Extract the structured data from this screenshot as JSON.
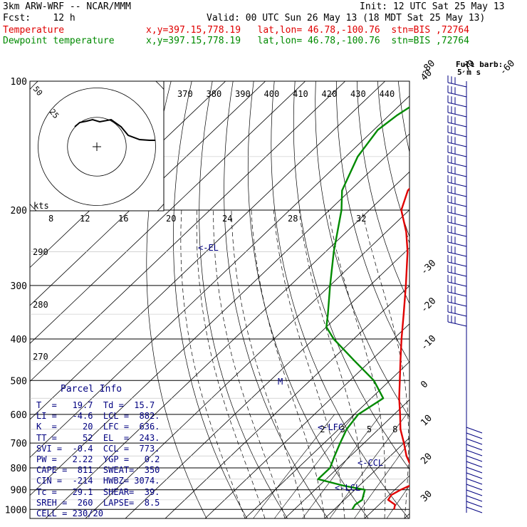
{
  "header": {
    "model": "3km ARW-WRF -- NCAR/MMM",
    "init": "Init: 12 UTC Sat 25 May 13",
    "fcst": "Fcst:    12 h",
    "valid": "Valid: 00 UTC Sun 26 May 13 (18 MDT Sat 25 May 13)",
    "temp_label": "Temperature",
    "temp_loc": "x,y=397.15,778.19   lat,lon= 46.78,-100.76  stn=BIS ,72764",
    "dew_label": "Dewpoint temperature",
    "dew_loc": "x,y=397.15,778.19   lat,lon= 46.78,-100.76  stn=BIS ,72764"
  },
  "colors": {
    "temperature": "#e00000",
    "dewpoint": "#008a00",
    "text": "#000080"
  },
  "parcel_info": {
    "title": "Parcel Info",
    "rows": [
      "T  =   19.7  Td =  15.7",
      "LI =   -4.6  LCL =  882.",
      "K  =     20  LFC =  636.",
      "TT =     52  EL  =  243.",
      "SVI =  -0.4  CCL =  773.",
      "PW =   2.22  YGP =   0.2",
      "CAPE =  811  SWEAT=  350",
      "CIN =  -214  HWBZ= 3074.",
      "Tc =   29.1  SHEAR=  39.",
      "SREH =  260  LAPSE=  8.5",
      "CELL = 230/20"
    ]
  },
  "labels": {
    "lcl": "<-LCL",
    "lfc": "<-LFC",
    "ccl": "<-CCL",
    "el": "<-EL",
    "m": "M",
    "full_barb": "Full barb:",
    "barb_units": "5 m s",
    "hodo_units": "kts"
  },
  "hodograph": {
    "ring_labels": [
      "25",
      "50"
    ],
    "speed_ticks": [
      "8",
      "12",
      "16",
      "20",
      "24",
      "28",
      "32"
    ]
  },
  "chart_data": {
    "type": "line",
    "title": "",
    "xlabel": "",
    "ylabel": "",
    "pressure_levels": [
      "100",
      "200",
      "300",
      "400",
      "500",
      "600",
      "700",
      "800",
      "900",
      "1000"
    ],
    "isotherm_labels": [
      "-80",
      "-70",
      "-60",
      "-50",
      "-40",
      "-30",
      "-20",
      "-10",
      "0",
      "10",
      "20",
      "30",
      "40"
    ],
    "theta_labels": [
      "370",
      "380",
      "390",
      "400",
      "410",
      "420",
      "430",
      "440"
    ],
    "theta_left_labels": [
      "290",
      "280",
      "270"
    ],
    "mixing_ratio_labels": [
      "2",
      "3",
      "5",
      "8",
      "12",
      "20"
    ],
    "series": [
      {
        "name": "Temperature",
        "points": [
          [
            1000,
            25
          ],
          [
            975,
            24
          ],
          [
            950,
            21
          ],
          [
            925,
            20.5
          ],
          [
            900,
            21.5
          ],
          [
            875,
            23
          ],
          [
            850,
            22
          ],
          [
            800,
            18.5
          ],
          [
            750,
            14
          ],
          [
            700,
            10
          ],
          [
            650,
            5.5
          ],
          [
            600,
            1.5
          ],
          [
            550,
            -3
          ],
          [
            500,
            -7.5
          ],
          [
            450,
            -12.5
          ],
          [
            400,
            -18
          ],
          [
            350,
            -24
          ],
          [
            300,
            -31
          ],
          [
            250,
            -39.5
          ],
          [
            225,
            -45
          ],
          [
            200,
            -52
          ],
          [
            180,
            -55.5
          ],
          [
            150,
            -56.5
          ],
          [
            130,
            -57
          ],
          [
            120,
            -56
          ],
          [
            110,
            -55
          ],
          [
            100,
            -54
          ]
        ]
      },
      {
        "name": "Dewpoint temperature",
        "points": [
          [
            1000,
            14.5
          ],
          [
            975,
            14
          ],
          [
            950,
            14.5
          ],
          [
            925,
            13.5
          ],
          [
            900,
            12.5
          ],
          [
            880,
            6
          ],
          [
            850,
            -2
          ],
          [
            800,
            -2
          ],
          [
            750,
            -4
          ],
          [
            700,
            -6
          ],
          [
            650,
            -8
          ],
          [
            600,
            -9
          ],
          [
            550,
            -7
          ],
          [
            500,
            -14
          ],
          [
            450,
            -24
          ],
          [
            400,
            -35
          ],
          [
            375,
            -40
          ],
          [
            350,
            -43
          ],
          [
            300,
            -50
          ],
          [
            250,
            -58
          ],
          [
            200,
            -67
          ],
          [
            180,
            -72
          ],
          [
            150,
            -77
          ],
          [
            130,
            -79
          ],
          [
            120,
            -78
          ],
          [
            110,
            -76
          ],
          [
            100,
            -74
          ]
        ]
      }
    ],
    "hodograph": [
      [
        0,
        0
      ],
      [
        4,
        -3
      ],
      [
        9,
        -5
      ],
      [
        13,
        -4
      ],
      [
        18,
        -4
      ],
      [
        22,
        -3
      ],
      [
        25,
        -1
      ],
      [
        30,
        -3
      ],
      [
        35,
        -2
      ],
      [
        40,
        -2
      ]
    ],
    "xlim": [
      -40,
      40
    ],
    "ylim": [
      1050,
      100
    ],
    "grid": true
  }
}
